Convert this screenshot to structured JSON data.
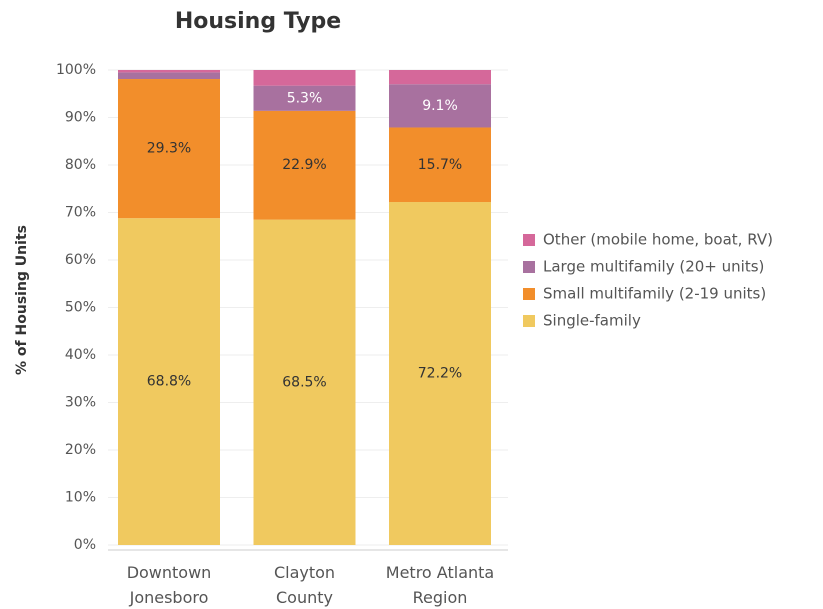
{
  "chart_data": {
    "type": "stacked_bar",
    "title": "Housing Type",
    "y_label": "% of Housing Units",
    "categories": [
      "Downtown\nJonesboro",
      "Clayton\nCounty",
      "Metro Atlanta\nRegion"
    ],
    "series": [
      {
        "name": "Single-family",
        "color": "#f0c95f",
        "label_color": "#333333",
        "values": [
          68.8,
          68.5,
          72.2
        ],
        "value_labels": [
          "68.8%",
          "68.5%",
          "72.2%"
        ]
      },
      {
        "name": "Small multifamily (2-19 units)",
        "color": "#f28e2b",
        "label_color": "#333333",
        "values": [
          29.3,
          22.9,
          15.7
        ],
        "value_labels": [
          "29.3%",
          "22.9%",
          "15.7%"
        ]
      },
      {
        "name": "Large multifamily (20+ units)",
        "color": "#a8719f",
        "label_color": "#ffffff",
        "values": [
          1.4,
          5.3,
          9.1
        ],
        "value_labels": [
          null,
          "5.3%",
          "9.1%"
        ]
      },
      {
        "name": "Other (mobile home, boat, RV)",
        "color": "#d5689a",
        "label_color": "#333333",
        "values": [
          0.5,
          3.3,
          3.0
        ],
        "value_labels": [
          null,
          null,
          null
        ]
      }
    ],
    "ylim": [
      0,
      100
    ],
    "yticks": [
      {
        "value": 0,
        "label": "0%"
      },
      {
        "value": 10,
        "label": "10%"
      },
      {
        "value": 20,
        "label": "20%"
      },
      {
        "value": 30,
        "label": "30%"
      },
      {
        "value": 40,
        "label": "40%"
      },
      {
        "value": 50,
        "label": "50%"
      },
      {
        "value": 60,
        "label": "60%"
      },
      {
        "value": 70,
        "label": "70%"
      },
      {
        "value": 80,
        "label": "80%"
      },
      {
        "value": 90,
        "label": "90%"
      },
      {
        "value": 100,
        "label": "100%"
      }
    ],
    "grid": true,
    "legend": "right"
  }
}
